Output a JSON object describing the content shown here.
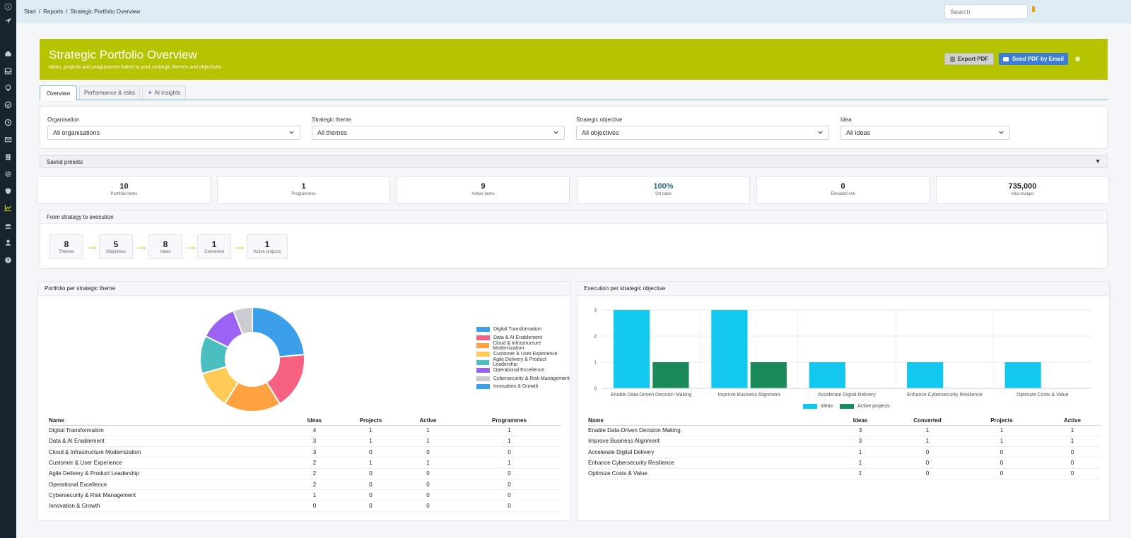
{
  "app": {
    "breadcrumbs": [
      "Start",
      "/",
      "Reports",
      "/",
      "Strategic Portfolio Overview"
    ],
    "search_placeholder": "Search"
  },
  "header": {
    "title": "Strategic Portfolio Overview",
    "subtitle": "Ideas, projects and programmes linked to your strategic themes and objectives",
    "export_label": "Export PDF",
    "email_label": "Send PDF by Email",
    "color": "#b6c400"
  },
  "tabs": [
    {
      "label": "Overview",
      "active": true
    },
    {
      "label": "Performance & risks",
      "active": false
    },
    {
      "label": "AI insights",
      "active": false
    }
  ],
  "filters": [
    {
      "label": "Organisation",
      "value": "All organisations"
    },
    {
      "label": "Strategic theme",
      "value": "All themes"
    },
    {
      "label": "Strategic objective",
      "value": "All objectives"
    },
    {
      "label": "Idea",
      "value": "All ideas"
    }
  ],
  "presets_label": "Saved presets",
  "kpis": [
    {
      "value": "10",
      "label": "Portfolio items"
    },
    {
      "value": "1",
      "label": "Programmes"
    },
    {
      "value": "9",
      "label": "Active items"
    },
    {
      "value": "100%",
      "label": "On track"
    },
    {
      "value": "0",
      "label": "Elevated risk"
    },
    {
      "value": "735,000",
      "label": "Idea budget"
    }
  ],
  "flow": {
    "title": "From strategy to execution",
    "steps": [
      {
        "value": "8",
        "label": "Themes"
      },
      {
        "value": "5",
        "label": "Objectives"
      },
      {
        "value": "8",
        "label": "Ideas"
      },
      {
        "value": "1",
        "label": "Converted"
      },
      {
        "value": "1",
        "label": "Active projects"
      }
    ]
  },
  "theme_card": {
    "title": "Portfolio per strategic theme",
    "columns": [
      "Name",
      "Ideas",
      "Projects",
      "Active",
      "Programmes"
    ],
    "rows": [
      [
        "Digital Transformation",
        "4",
        "1",
        "1",
        "1"
      ],
      [
        "Data & AI Enablement",
        "3",
        "1",
        "1",
        "1"
      ],
      [
        "Cloud & Infrastructure Modernization",
        "3",
        "0",
        "0",
        "0"
      ],
      [
        "Customer & User Experience",
        "2",
        "1",
        "1",
        "1"
      ],
      [
        "Agile Delivery & Product Leadership",
        "2",
        "0",
        "0",
        "0"
      ],
      [
        "Operational Excellence",
        "2",
        "0",
        "0",
        "0"
      ],
      [
        "Cybersecurity & Risk Management",
        "1",
        "0",
        "0",
        "0"
      ],
      [
        "Innovation & Growth",
        "0",
        "0",
        "0",
        "0"
      ]
    ]
  },
  "objective_card": {
    "title": "Execution per strategic objective",
    "columns": [
      "Name",
      "Ideas",
      "Converted",
      "Projects",
      "Active"
    ],
    "rows": [
      [
        "Enable Data-Driven Decision Making",
        "3",
        "1",
        "1",
        "1"
      ],
      [
        "Improve Business Alignment",
        "3",
        "1",
        "1",
        "1"
      ],
      [
        "Accelerate Digital Delivery",
        "1",
        "0",
        "0",
        "0"
      ],
      [
        "Enhance Cybersecurity Resilience",
        "1",
        "0",
        "0",
        "0"
      ],
      [
        "Optimize Costs & Value",
        "1",
        "0",
        "0",
        "0"
      ]
    ]
  },
  "chart_data": [
    {
      "type": "pie",
      "donut": true,
      "labels": [
        "Digital Transformation",
        "Data & AI Enablement",
        "Cloud & Infrastructure Modernization",
        "Customer & User Experience",
        "Agile Delivery & Product Leadership",
        "Operational Excellence",
        "Cybersecurity & Risk Management",
        "Innovation & Growth"
      ],
      "values": [
        4,
        3,
        3,
        2,
        2,
        2,
        1,
        0
      ],
      "colors": [
        "#3a9fe8",
        "#f5617e",
        "#fda23f",
        "#fecb57",
        "#4bbfbf",
        "#9a63f4",
        "#c9cbcf",
        "#3a9fe8"
      ],
      "legend": "right"
    },
    {
      "type": "bar",
      "categories": [
        "Enable Data-Driven Decision Making",
        "Improve Business Alignment",
        "Accelerate Digital Delivery",
        "Enhance Cybersecurity Resilience",
        "Optimize Costs & Value"
      ],
      "series": [
        {
          "name": "Ideas",
          "values": [
            3,
            3,
            1,
            1,
            1
          ],
          "color": "#12c8ee"
        },
        {
          "name": "Active projects",
          "values": [
            1,
            1,
            0,
            0,
            0
          ],
          "color": "#1b8a5a"
        }
      ],
      "ylim": [
        0,
        3
      ],
      "yticks": [
        "0",
        "1",
        "2",
        "3"
      ],
      "grid": true,
      "legend": "bottom"
    }
  ]
}
